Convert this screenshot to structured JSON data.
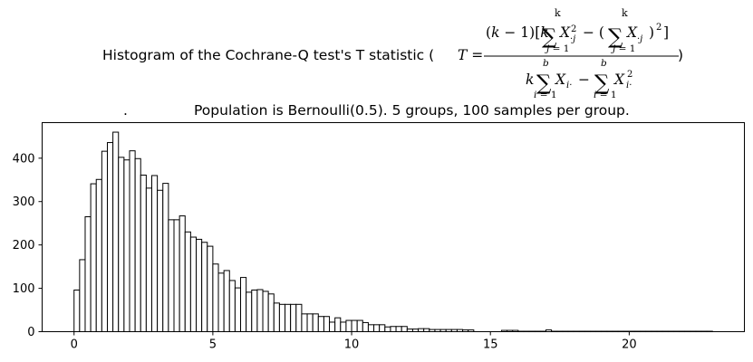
{
  "chart_data": {
    "type": "bar",
    "subtype": "histogram",
    "title": {
      "prefix": "Histogram of the Cochrane-Q test's T statistic (",
      "formula_lhs": "T =",
      "numerator": "(k − 1)[k Σ_{j=1}^{k} X_{·j}^2 − (Σ_{j=1}^{k} X_{·j})^2]",
      "denominator": "k Σ_{i=1}^{b} X_{i·} − Σ_{i=1}^{b} X_{i·}^2",
      "suffix": ")",
      "line2_dot": ".",
      "line2": "Population is Bernoulli(0.5). 5 groups, 100 samples per group."
    },
    "xlabel": "",
    "ylabel": "",
    "xlim": [
      -1.15,
      24.15
    ],
    "ylim": [
      0,
      482
    ],
    "xticks": [
      0,
      5,
      10,
      15,
      20
    ],
    "yticks": [
      0,
      100,
      200,
      300,
      400
    ],
    "bin_start": 0.0,
    "bin_width": 0.2,
    "counts": [
      96,
      166,
      265,
      341,
      351,
      416,
      436,
      460,
      402,
      396,
      417,
      399,
      361,
      331,
      360,
      326,
      342,
      258,
      258,
      267,
      230,
      218,
      213,
      206,
      197,
      156,
      135,
      141,
      118,
      101,
      125,
      91,
      96,
      97,
      93,
      87,
      66,
      63,
      63,
      63,
      63,
      41,
      41,
      41,
      35,
      35,
      22,
      32,
      22,
      26,
      26,
      26,
      21,
      16,
      16,
      16,
      11,
      12,
      12,
      12,
      6,
      6,
      7,
      7,
      5,
      5,
      5,
      5,
      5,
      5,
      4,
      4,
      0,
      0,
      0,
      0,
      0,
      3,
      3,
      3,
      1,
      1,
      1,
      1,
      1,
      4,
      1,
      1,
      1,
      1,
      1,
      1,
      1,
      1,
      1,
      1,
      1,
      1,
      1,
      1,
      1,
      1,
      1,
      1,
      1,
      1,
      1,
      1,
      1,
      1,
      1,
      1,
      1,
      1,
      1
    ],
    "grid": false,
    "colors": {
      "bar_fill": "#ffffff",
      "bar_edge": "#000000",
      "axes": "#000000"
    }
  }
}
